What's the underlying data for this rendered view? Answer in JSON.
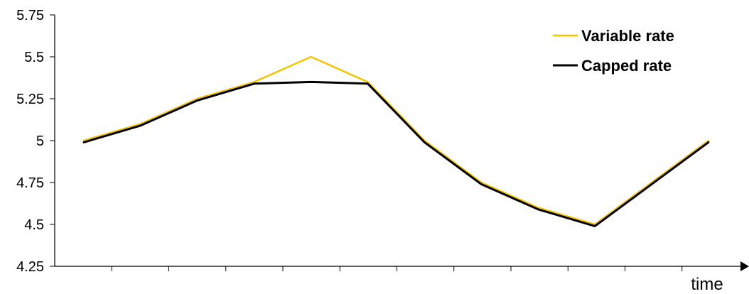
{
  "chart_data": {
    "type": "line",
    "title": "",
    "xlabel": "time",
    "ylabel": "",
    "x": [
      1,
      2,
      3,
      4,
      5,
      6,
      7,
      8,
      9,
      10,
      11,
      12
    ],
    "ylim": [
      4.25,
      5.75
    ],
    "yticks": [
      "5.75",
      "5.5",
      "5.25",
      "5",
      "4.75",
      "4.5",
      "4.25"
    ],
    "grid": false,
    "legend_position": "top-right",
    "series": [
      {
        "name": "Variable rate",
        "color": "#F5C400",
        "values": [
          5.0,
          5.1,
          5.25,
          5.35,
          5.5,
          5.35,
          5.0,
          4.75,
          4.6,
          4.5,
          4.75,
          5.0
        ]
      },
      {
        "name": "Capped rate",
        "color": "#000000",
        "values": [
          4.99,
          5.09,
          5.24,
          5.34,
          5.35,
          5.34,
          4.99,
          4.74,
          4.59,
          4.49,
          4.74,
          4.99
        ]
      }
    ]
  }
}
